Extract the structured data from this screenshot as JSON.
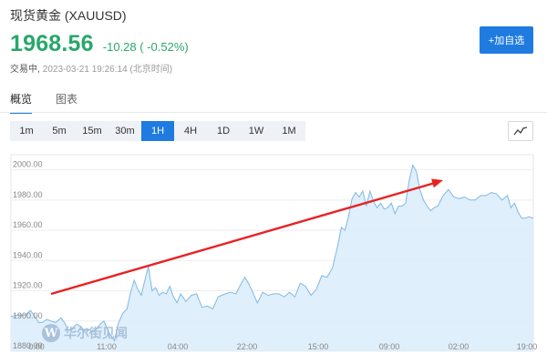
{
  "header": {
    "title": "现货黄金 (XAUUSD)",
    "price": "1968.56",
    "change": "-10.28 ( -0.52%)",
    "status": "交易中,",
    "timestamp": "2023-03-21 19:26:14 (北京时间)",
    "add_button": "+加自选",
    "price_color": "#27a86a",
    "accent_color": "#1f7be0"
  },
  "tabs": [
    {
      "label": "概览",
      "active": true
    },
    {
      "label": "图表",
      "active": false
    }
  ],
  "periods": [
    {
      "label": "1m",
      "active": false
    },
    {
      "label": "5m",
      "active": false
    },
    {
      "label": "15m",
      "active": false
    },
    {
      "label": "30m",
      "active": false
    },
    {
      "label": "1H",
      "active": true
    },
    {
      "label": "4H",
      "active": false
    },
    {
      "label": "1D",
      "active": false
    },
    {
      "label": "1W",
      "active": false
    },
    {
      "label": "1M",
      "active": false
    }
  ],
  "chart_toggle_icon": "line-chart-icon",
  "watermark": {
    "text": "华尔街见闻",
    "logo_letter": "W"
  },
  "chart_data": {
    "type": "area",
    "y_ticks": [
      "1880.00",
      "1900.00",
      "1920.00",
      "1940.00",
      "1960.00",
      "1980.00",
      "2000.00"
    ],
    "x_ticks": [
      "0:00",
      "11:00",
      "04:00",
      "22:00",
      "15:00",
      "09:00",
      "02:00",
      "19:00"
    ],
    "ylim": [
      1880,
      2010
    ],
    "grid": true,
    "line_color": "#7fb8e6",
    "fill_color": "#dcedfb",
    "x": [
      0,
      8,
      16,
      22,
      28,
      31,
      35,
      40,
      45,
      50,
      56,
      60,
      64,
      68,
      74,
      79,
      82,
      85,
      88,
      92,
      96,
      100,
      104,
      110,
      116,
      120,
      125,
      130,
      134,
      138,
      142,
      146,
      150,
      154,
      158,
      162,
      166,
      170,
      174,
      178,
      182,
      186,
      190,
      196,
      202,
      208,
      214,
      220,
      226,
      232,
      236,
      240,
      246,
      252,
      258,
      262,
      266,
      270,
      276,
      282,
      288,
      294,
      300,
      306,
      312,
      318,
      324,
      330,
      336,
      342,
      348,
      354,
      360,
      366,
      370,
      374,
      378,
      382,
      386,
      390,
      394,
      398,
      402,
      406,
      410,
      414,
      418,
      422,
      426,
      430,
      434,
      438,
      442,
      446,
      450,
      454,
      458,
      462,
      466,
      470,
      474,
      478,
      484,
      490,
      496,
      502,
      508,
      514,
      520,
      526,
      532,
      538,
      544,
      550,
      556,
      560,
      564,
      568,
      572,
      576,
      580,
      585
    ],
    "y": [
      1903,
      1904,
      1904,
      1907,
      1902,
      1899,
      1899,
      1901,
      1900,
      1899,
      1902,
      1899,
      1894,
      1895,
      1898,
      1896,
      1893,
      1895,
      1894,
      1893,
      1895,
      1898,
      1900,
      1892,
      1887,
      1898,
      1905,
      1908,
      1919,
      1927,
      1921,
      1917,
      1927,
      1936,
      1920,
      1922,
      1917,
      1919,
      1918,
      1923,
      1916,
      1912,
      1918,
      1913,
      1917,
      1918,
      1909,
      1910,
      1908,
      1916,
      1917,
      1918,
      1919,
      1918,
      1925,
      1929,
      1925,
      1920,
      1912,
      1919,
      1917,
      1918,
      1918,
      1916,
      1919,
      1916,
      1925,
      1923,
      1917,
      1921,
      1930,
      1929,
      1935,
      1950,
      1962,
      1960,
      1969,
      1981,
      1985,
      1982,
      1986,
      1976,
      1986,
      1979,
      1975,
      1978,
      1974,
      1975,
      1978,
      1971,
      1976,
      1976,
      1978,
      1993,
      2003,
      1999,
      1987,
      1980,
      1976,
      1973,
      1975,
      1976,
      1983,
      1987,
      1982,
      1981,
      1982,
      1980,
      1980,
      1983,
      1983,
      1985,
      1984,
      1980,
      1983,
      1975,
      1978,
      1972,
      1968,
      1968,
      1969,
      1968
    ]
  },
  "annotation": {
    "arrow_color": "#e82222"
  }
}
